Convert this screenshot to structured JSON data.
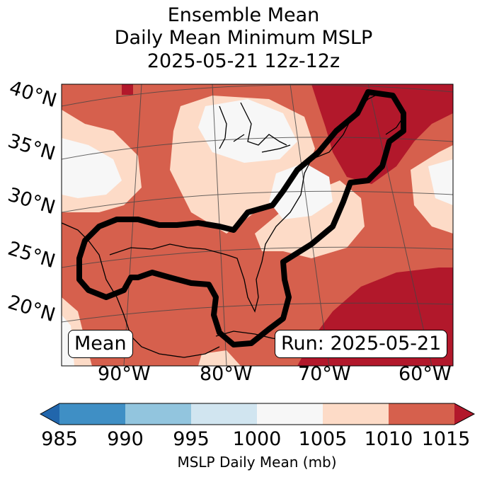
{
  "title": {
    "line1": "Ensemble Mean",
    "line2": "Daily Mean Minimum MSLP",
    "line3": "2025-05-21 12z-12z"
  },
  "map": {
    "lat_labels": [
      "40°N",
      "35°N",
      "30°N",
      "25°N",
      "20°N"
    ],
    "lon_labels": [
      "90°W",
      "80°W",
      "70°W",
      "60°W"
    ],
    "mean_label": "Mean",
    "run_label": "Run: 2025-05-21"
  },
  "colorbar": {
    "ticks": [
      "985",
      "990",
      "995",
      "1000",
      "1005",
      "1010",
      "1015"
    ],
    "label": "MSLP Daily Mean (mb)",
    "colors": [
      "#2166ac",
      "#3f8fc5",
      "#92c5de",
      "#d1e5f0",
      "#f7f7f7",
      "#fddbc7",
      "#d6604d",
      "#b2182b"
    ]
  }
}
